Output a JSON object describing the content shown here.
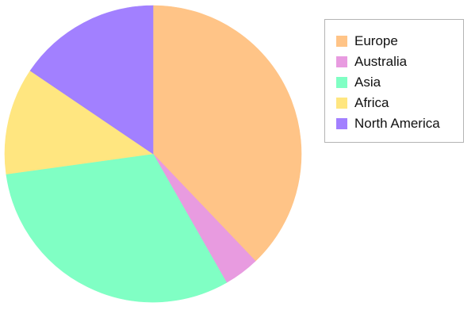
{
  "chart_data": {
    "type": "pie",
    "title": "",
    "legend_placement": "right",
    "start": "top",
    "direction": "clockwise",
    "slices": [
      {
        "label": "Europe",
        "value": 39.0,
        "color": "#FFC487"
      },
      {
        "label": "Australia",
        "value": 4.0,
        "color": "#E89BE0"
      },
      {
        "label": "Asia",
        "value": 32.0,
        "color": "#80FFC4"
      },
      {
        "label": "Africa",
        "value": 12.0,
        "color": "#FFE680"
      },
      {
        "label": "North America",
        "value": 16.0,
        "color": "#A280FF"
      }
    ]
  }
}
